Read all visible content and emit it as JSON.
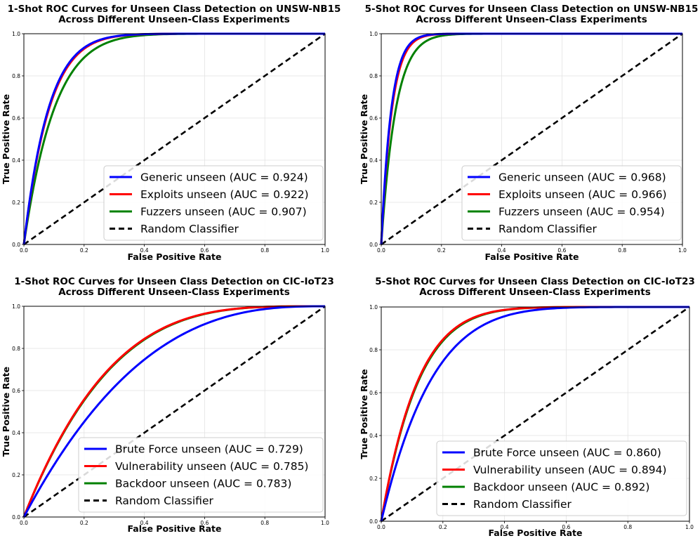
{
  "chart_data": [
    {
      "type": "line",
      "title": [
        "1-Shot ROC Curves for Unseen Class Detection on UNSW-NB15",
        "Across Different Unseen-Class Experiments"
      ],
      "xlabel": "False Positive Rate",
      "ylabel": "True Positive Rate",
      "xlim": [
        0,
        1
      ],
      "ylim": [
        0,
        1
      ],
      "xticks": [
        "0.0",
        "0.2",
        "0.4",
        "0.6",
        "0.8",
        "1.0"
      ],
      "yticks": [
        "0.0",
        "0.2",
        "0.4",
        "0.6",
        "0.8",
        "1.0"
      ],
      "grid": true,
      "legend_position": "lower-right",
      "series": [
        {
          "name": "Generic unseen",
          "auc": 0.924,
          "label": "Generic unseen (AUC = 0.924)",
          "color": "#0000ff"
        },
        {
          "name": "Exploits unseen",
          "auc": 0.922,
          "label": "Exploits unseen (AUC = 0.922)",
          "color": "#ff0000"
        },
        {
          "name": "Fuzzers unseen",
          "auc": 0.907,
          "label": "Fuzzers unseen (AUC = 0.907)",
          "color": "#008000"
        }
      ],
      "baseline": {
        "label": "Random Classifier",
        "color": "#000000"
      }
    },
    {
      "type": "line",
      "title": [
        "5-Shot ROC Curves for Unseen Class Detection on UNSW-NB15",
        "Across Different Unseen-Class Experiments"
      ],
      "xlabel": "False Positive Rate",
      "ylabel": "True Positive Rate",
      "xlim": [
        0,
        1
      ],
      "ylim": [
        0,
        1
      ],
      "xticks": [
        "0.0",
        "0.2",
        "0.4",
        "0.6",
        "0.8",
        "1.0"
      ],
      "yticks": [
        "0.0",
        "0.2",
        "0.4",
        "0.6",
        "0.8",
        "1.0"
      ],
      "grid": true,
      "legend_position": "lower-right",
      "series": [
        {
          "name": "Generic unseen",
          "auc": 0.968,
          "label": "Generic unseen (AUC = 0.968)",
          "color": "#0000ff"
        },
        {
          "name": "Exploits unseen",
          "auc": 0.966,
          "label": "Exploits unseen (AUC = 0.966)",
          "color": "#ff0000"
        },
        {
          "name": "Fuzzers unseen",
          "auc": 0.954,
          "label": "Fuzzers unseen (AUC = 0.954)",
          "color": "#008000"
        }
      ],
      "baseline": {
        "label": "Random Classifier",
        "color": "#000000"
      }
    },
    {
      "type": "line",
      "title": [
        "1-Shot ROC Curves for Unseen Class Detection on CIC-IoT23",
        "Across Different Unseen-Class Experiments"
      ],
      "xlabel": "False Positive Rate",
      "ylabel": "True Positive Rate",
      "xlim": [
        0,
        1
      ],
      "ylim": [
        0,
        1
      ],
      "xticks": [
        "0.0",
        "0.2",
        "0.4",
        "0.6",
        "0.8",
        "1.0"
      ],
      "yticks": [
        "0.0",
        "0.2",
        "0.4",
        "0.6",
        "0.8",
        "1.0"
      ],
      "grid": true,
      "legend_position": "lower-right",
      "series": [
        {
          "name": "Brute Force unseen",
          "auc": 0.729,
          "label": "Brute Force unseen (AUC = 0.729)",
          "color": "#0000ff"
        },
        {
          "name": "Vulnerability unseen",
          "auc": 0.785,
          "label": "Vulnerability unseen (AUC = 0.785)",
          "color": "#ff0000"
        },
        {
          "name": "Backdoor unseen",
          "auc": 0.783,
          "label": "Backdoor unseen (AUC = 0.783)",
          "color": "#008000"
        }
      ],
      "baseline": {
        "label": "Random Classifier",
        "color": "#000000"
      }
    },
    {
      "type": "line",
      "title": [
        "5-Shot ROC Curves for Unseen Class Detection on CIC-IoT23",
        "Across Different Unseen-Class Experiments"
      ],
      "xlabel": "False Positive Rate",
      "ylabel": "True Positive Rate",
      "xlim": [
        0,
        1
      ],
      "ylim": [
        0,
        1
      ],
      "xticks": [
        "0.0",
        "0.2",
        "0.4",
        "0.6",
        "0.8",
        "1.0"
      ],
      "yticks": [
        "0.0",
        "0.2",
        "0.4",
        "0.6",
        "0.8",
        "1.0"
      ],
      "grid": true,
      "legend_position": "lower-right",
      "series": [
        {
          "name": "Brute Force unseen",
          "auc": 0.86,
          "label": "Brute Force unseen (AUC = 0.860)",
          "color": "#0000ff"
        },
        {
          "name": "Vulnerability unseen",
          "auc": 0.894,
          "label": "Vulnerability unseen (AUC = 0.894)",
          "color": "#ff0000"
        },
        {
          "name": "Backdoor unseen",
          "auc": 0.892,
          "label": "Backdoor unseen (AUC = 0.892)",
          "color": "#008000"
        }
      ],
      "baseline": {
        "label": "Random Classifier",
        "color": "#000000"
      }
    }
  ]
}
